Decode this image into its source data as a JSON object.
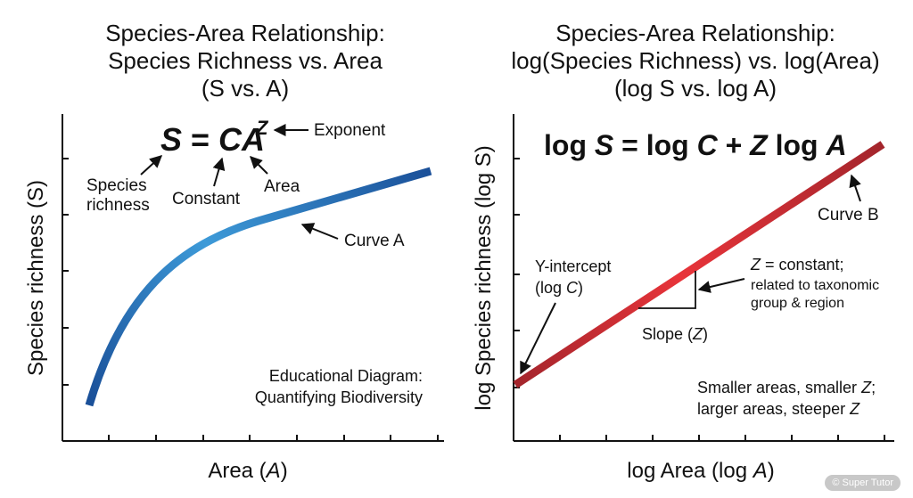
{
  "left_panel": {
    "title_lines": [
      "Species-Area Relationship:",
      "Species Richness vs. Area",
      "(S vs. A)"
    ],
    "ylabel": "Species richness (S)",
    "xlabel_prefix": "Area (",
    "xlabel_var": "A",
    "xlabel_suffix": ")",
    "equation": {
      "lhs": "S",
      "eq": " = ",
      "c": "C",
      "a": "A",
      "z": "Z"
    },
    "annotations": {
      "exponent": "Exponent",
      "species_line1": "Species",
      "species_line2": "richness",
      "constant": "Constant",
      "area": "Area",
      "curve": "Curve A"
    },
    "note_lines": [
      "Educational Diagram:",
      "Quantifying Biodiversity"
    ],
    "curve_color_start": "#1a4f98",
    "curve_color_mid": "#3d9ad8",
    "curve_color_end": "#1a4f98"
  },
  "right_panel": {
    "title_lines": [
      "Species-Area Relationship:",
      "log(Species Richness) vs. log(Area)",
      "(log S vs. log A)"
    ],
    "ylabel": "log Species richness (log S)",
    "xlabel_prefix": "log Area (log ",
    "xlabel_var": "A",
    "xlabel_suffix": ")",
    "equation": {
      "p1": "log ",
      "s": "S",
      "p2": " = log ",
      "c": "C",
      "p3": " + ",
      "z": "Z",
      "p4": " log ",
      "a": "A"
    },
    "annotations": {
      "curve": "Curve B",
      "yint_line1": "Y-intercept",
      "yint_line2_prefix": "(log ",
      "yint_line2_var": "C",
      "yint_line2_suffix": ")",
      "slope_prefix": "Slope (",
      "slope_var": "Z",
      "slope_suffix": ")",
      "zconst_var": "Z",
      "zconst_line1": " = constant;",
      "zconst_line2": "related to taxonomic",
      "zconst_line3": "group & region"
    },
    "note_line1": "Smaller areas, smaller ",
    "note_var1": "Z",
    "note_suffix1": ";",
    "note_line2": "larger areas, steeper ",
    "note_var2": "Z",
    "line_color_light": "#e8343a",
    "line_color_dark": "#a3252c"
  },
  "watermark": "© Super Tutor"
}
